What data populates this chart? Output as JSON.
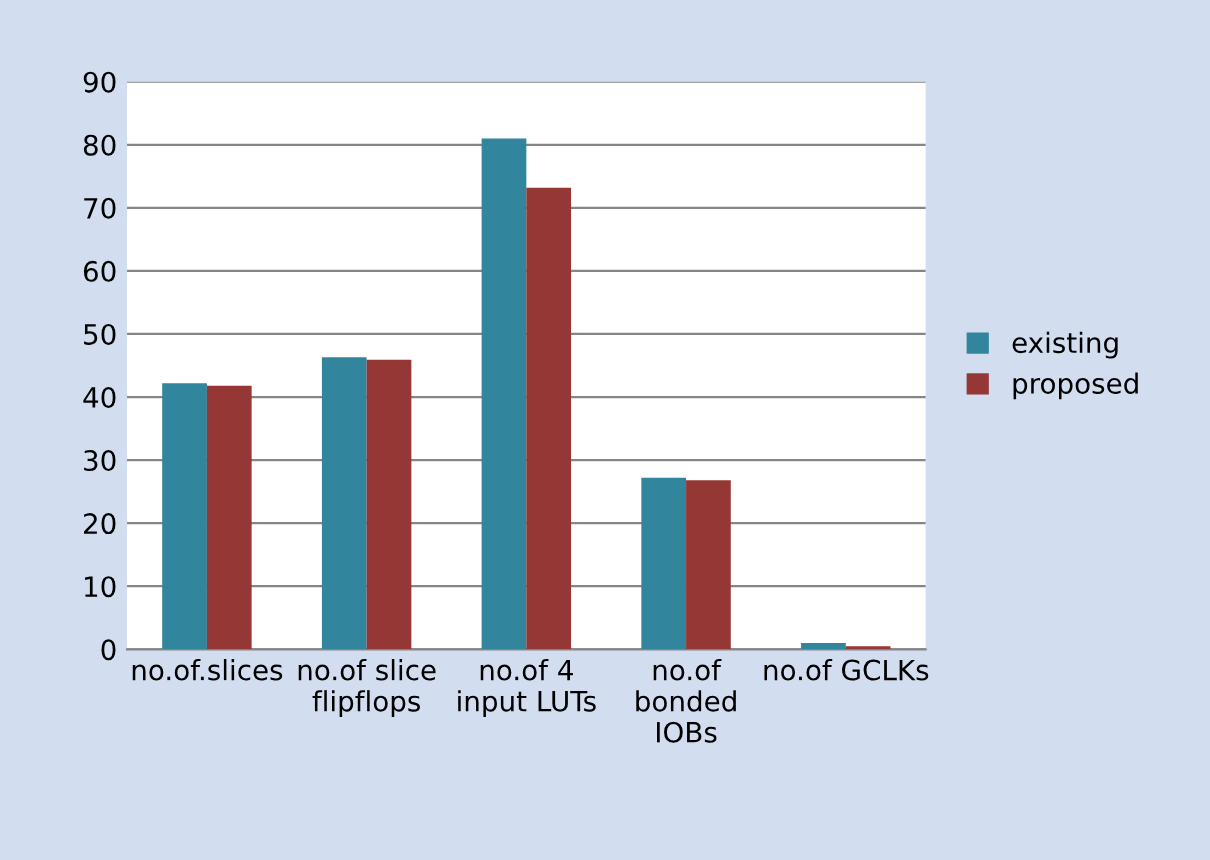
{
  "chart_data": {
    "type": "bar",
    "categories": [
      "no.of.slices",
      "no.of slice\nflipflops",
      "no.of 4\ninput LUTs",
      "no.of\nbonded\nIOBs",
      "no.of GCLKs"
    ],
    "series": [
      {
        "name": "existing",
        "color": "#31859c",
        "values": [
          42.2,
          46.3,
          81,
          27.2,
          1
        ]
      },
      {
        "name": "proposed",
        "color": "#953735",
        "values": [
          41.8,
          45.9,
          73.2,
          26.8,
          0.5
        ]
      }
    ],
    "ylim": [
      0,
      90
    ],
    "yticks": [
      0,
      10,
      20,
      30,
      40,
      50,
      60,
      70,
      80,
      90
    ],
    "grid": "y",
    "legend": "right"
  }
}
